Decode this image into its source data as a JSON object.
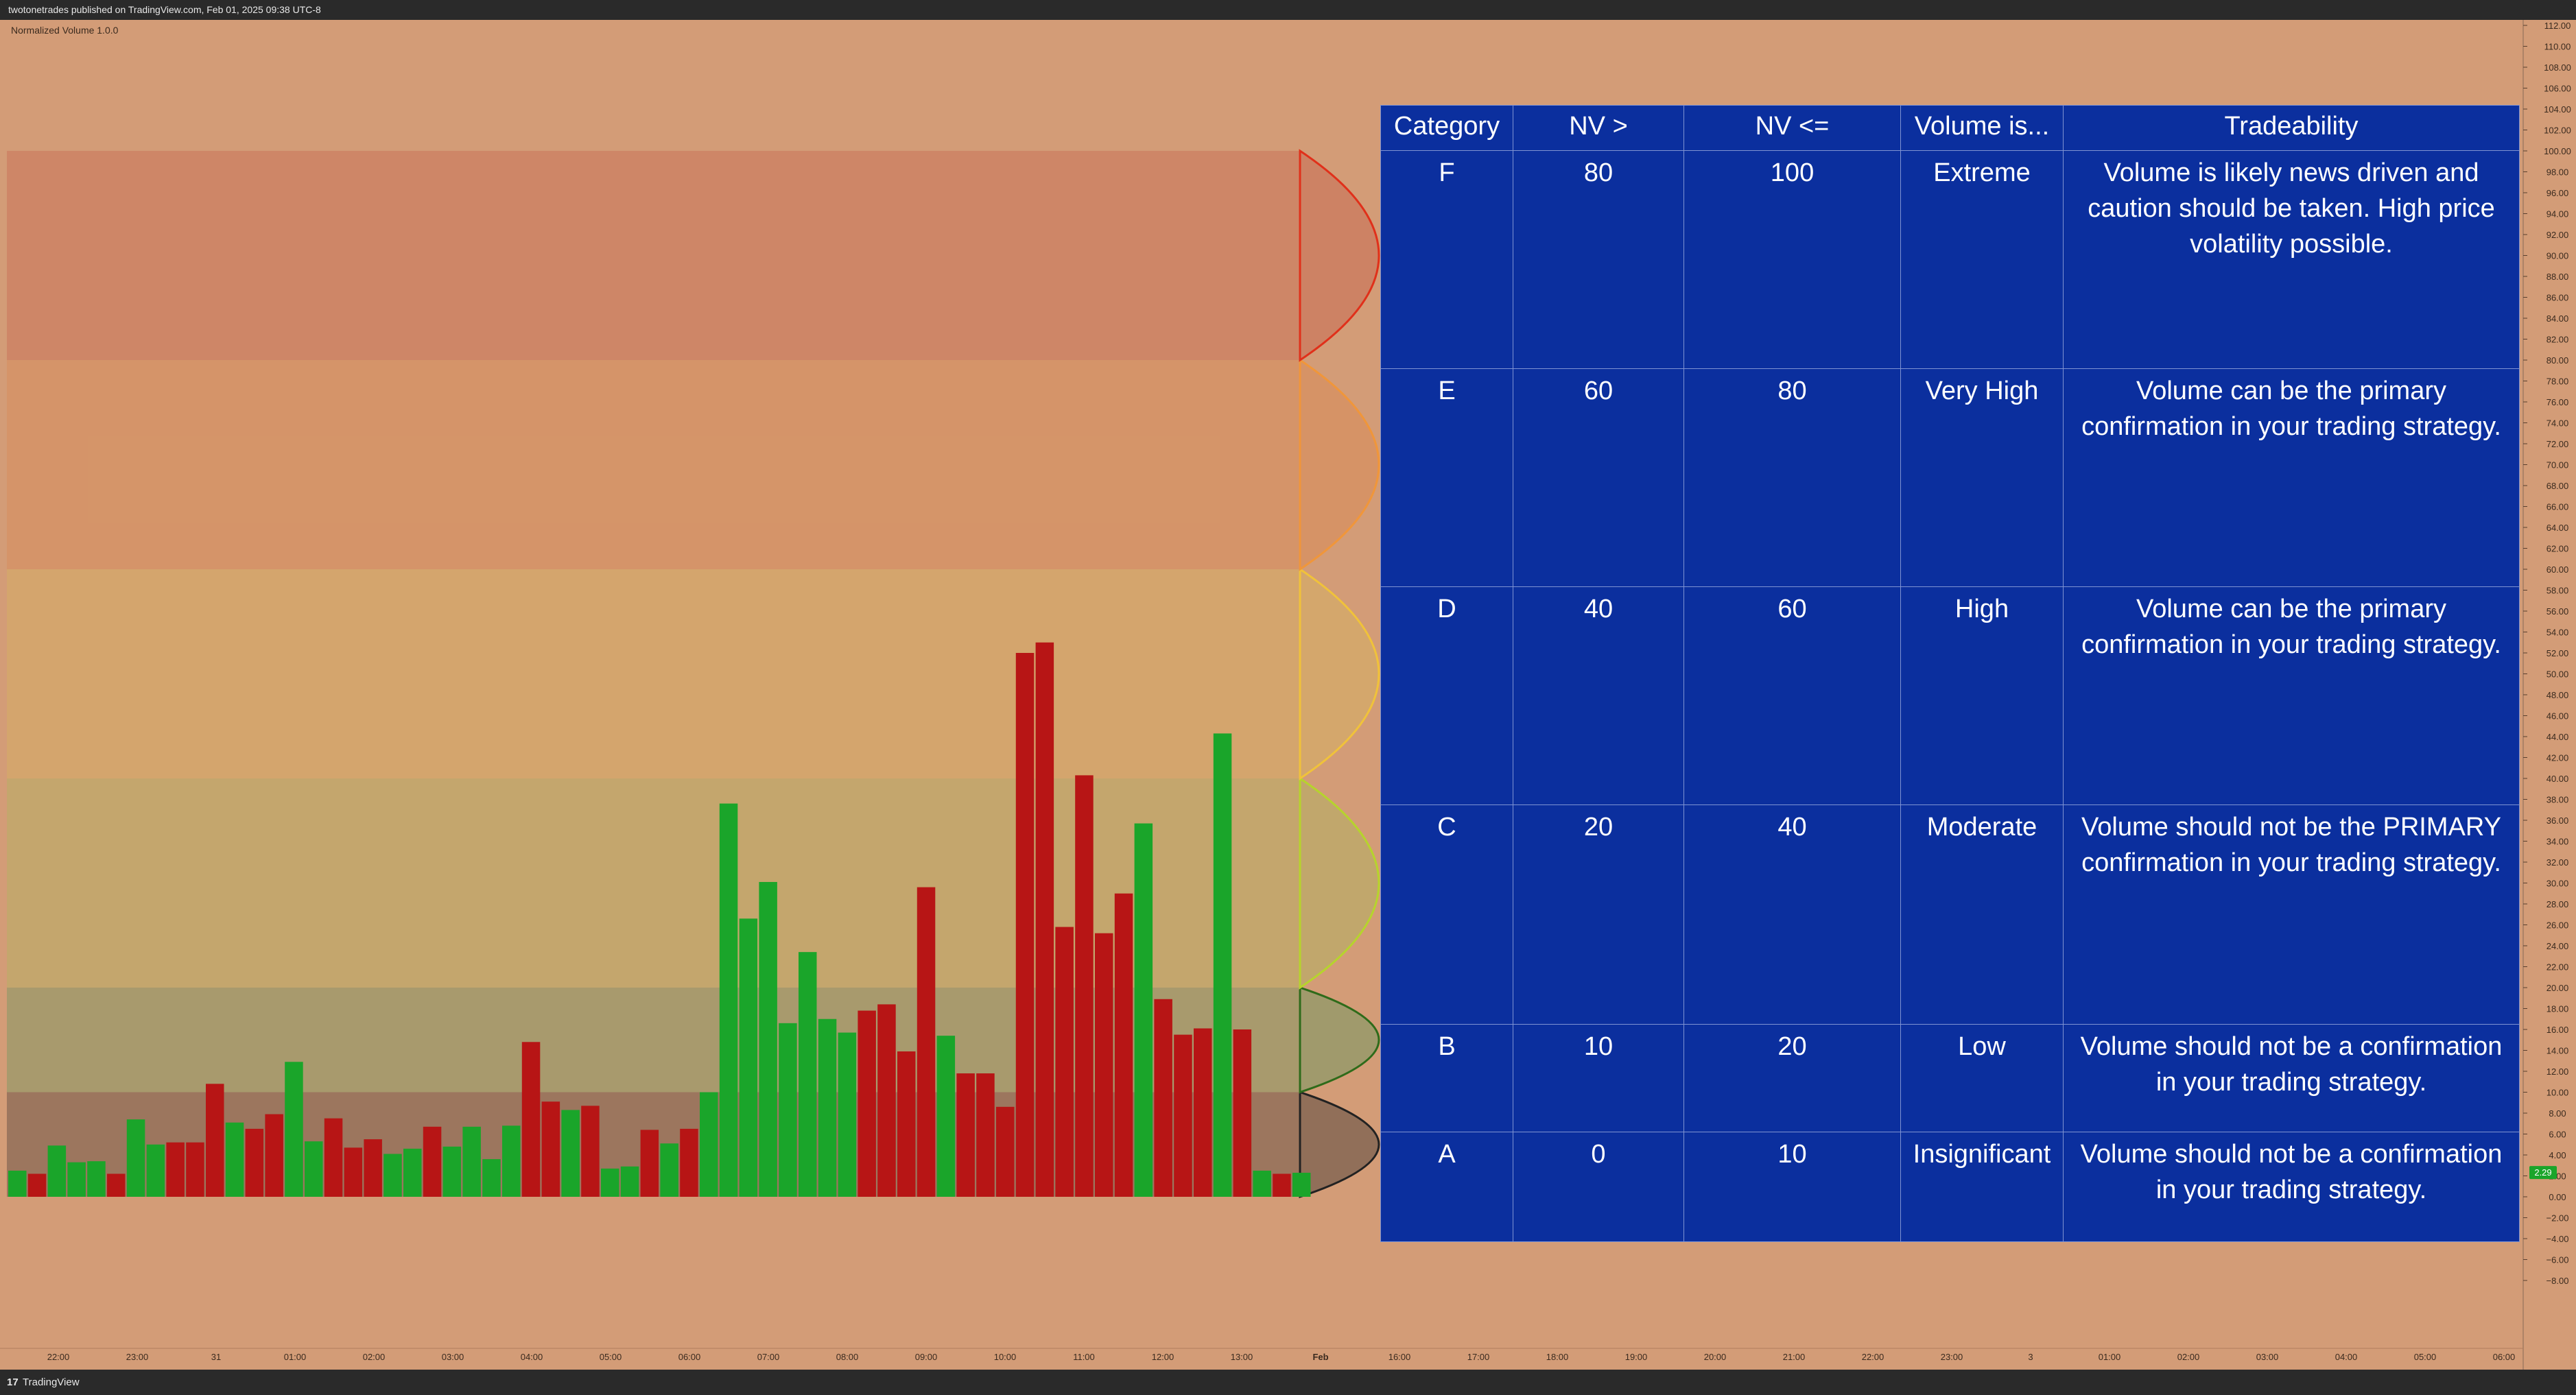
{
  "header": {
    "publish_info": "twotonetrades published on TradingView.com, Feb 01, 2025 09:38 UTC-8"
  },
  "footer": {
    "brand": "TradingView"
  },
  "colors": {
    "background": "#d39c77",
    "bull": "#1aa52a",
    "bear": "#b71515",
    "table_bg": "#0b2f9e",
    "table_border": "#7f93d2",
    "last_value_badge": "#1aa52a"
  },
  "chart_data": {
    "type": "bar",
    "title": "",
    "indicator_name": "Normalized Volume 1.0.0",
    "ylim": [
      -9,
      113
    ],
    "y_ticks": [
      "112.00",
      "110.00",
      "108.00",
      "106.00",
      "104.00",
      "102.00",
      "100.00",
      "98.00",
      "96.00",
      "94.00",
      "92.00",
      "90.00",
      "88.00",
      "86.00",
      "84.00",
      "82.00",
      "80.00",
      "78.00",
      "76.00",
      "74.00",
      "72.00",
      "70.00",
      "68.00",
      "66.00",
      "64.00",
      "62.00",
      "60.00",
      "58.00",
      "56.00",
      "54.00",
      "52.00",
      "50.00",
      "48.00",
      "46.00",
      "44.00",
      "42.00",
      "40.00",
      "38.00",
      "36.00",
      "34.00",
      "32.00",
      "30.00",
      "28.00",
      "26.00",
      "24.00",
      "22.00",
      "20.00",
      "18.00",
      "16.00",
      "14.00",
      "12.00",
      "10.00",
      "8.00",
      "6.00",
      "4.00",
      "2.00",
      "0.00",
      "−2.00",
      "−4.00",
      "−6.00",
      "−8.00"
    ],
    "x_ticks": [
      "22:00",
      "23:00",
      "31",
      "01:00",
      "02:00",
      "03:00",
      "04:00",
      "05:00",
      "06:00",
      "07:00",
      "08:00",
      "09:00",
      "10:00",
      "11:00",
      "12:00",
      "13:00",
      "Feb",
      "16:00",
      "17:00",
      "18:00",
      "19:00",
      "20:00",
      "21:00",
      "22:00",
      "23:00",
      "3",
      "01:00",
      "02:00",
      "03:00",
      "04:00",
      "05:00",
      "06:00"
    ],
    "bold_x_ticks": [
      "Feb"
    ],
    "last_value_label": "2.29",
    "last_value": 2.29,
    "zones": [
      {
        "label": "A",
        "low": 0,
        "high": 10,
        "color": "#8a6a55",
        "edge": "#222222"
      },
      {
        "label": "B",
        "low": 10,
        "high": 20,
        "color": "#9a9a6a",
        "edge": "#2e6b1a"
      },
      {
        "label": "C",
        "low": 20,
        "high": 40,
        "color": "#bfa96a",
        "edge": "#b6d42c"
      },
      {
        "label": "D",
        "low": 40,
        "high": 60,
        "color": "#d4a86a",
        "edge": "#f0c23a"
      },
      {
        "label": "E",
        "low": 60,
        "high": 80,
        "color": "#d69264",
        "edge": "#f0963a"
      },
      {
        "label": "F",
        "low": 80,
        "high": 100,
        "color": "#cc7f62",
        "edge": "#e0301a"
      }
    ],
    "bars": [
      {
        "v": 2.5,
        "dir": "up"
      },
      {
        "v": 2.2,
        "dir": "down"
      },
      {
        "v": 4.9,
        "dir": "up"
      },
      {
        "v": 3.3,
        "dir": "up"
      },
      {
        "v": 3.4,
        "dir": "up"
      },
      {
        "v": 2.2,
        "dir": "down"
      },
      {
        "v": 7.4,
        "dir": "up"
      },
      {
        "v": 5.0,
        "dir": "up"
      },
      {
        "v": 5.2,
        "dir": "down"
      },
      {
        "v": 5.2,
        "dir": "down"
      },
      {
        "v": 10.8,
        "dir": "down"
      },
      {
        "v": 7.1,
        "dir": "up"
      },
      {
        "v": 6.5,
        "dir": "down"
      },
      {
        "v": 7.9,
        "dir": "down"
      },
      {
        "v": 12.9,
        "dir": "up"
      },
      {
        "v": 5.3,
        "dir": "up"
      },
      {
        "v": 7.5,
        "dir": "down"
      },
      {
        "v": 4.7,
        "dir": "down"
      },
      {
        "v": 5.5,
        "dir": "down"
      },
      {
        "v": 4.1,
        "dir": "up"
      },
      {
        "v": 4.6,
        "dir": "up"
      },
      {
        "v": 6.7,
        "dir": "down"
      },
      {
        "v": 4.8,
        "dir": "up"
      },
      {
        "v": 6.7,
        "dir": "up"
      },
      {
        "v": 3.6,
        "dir": "up"
      },
      {
        "v": 6.8,
        "dir": "up"
      },
      {
        "v": 14.8,
        "dir": "down"
      },
      {
        "v": 9.1,
        "dir": "down"
      },
      {
        "v": 8.3,
        "dir": "up"
      },
      {
        "v": 8.7,
        "dir": "down"
      },
      {
        "v": 2.7,
        "dir": "up"
      },
      {
        "v": 2.9,
        "dir": "up"
      },
      {
        "v": 6.4,
        "dir": "down"
      },
      {
        "v": 5.1,
        "dir": "up"
      },
      {
        "v": 6.5,
        "dir": "down"
      },
      {
        "v": 10.0,
        "dir": "up"
      },
      {
        "v": 37.6,
        "dir": "up"
      },
      {
        "v": 26.6,
        "dir": "up"
      },
      {
        "v": 30.1,
        "dir": "up"
      },
      {
        "v": 16.6,
        "dir": "up"
      },
      {
        "v": 23.4,
        "dir": "up"
      },
      {
        "v": 17.0,
        "dir": "up"
      },
      {
        "v": 15.7,
        "dir": "up"
      },
      {
        "v": 17.8,
        "dir": "down"
      },
      {
        "v": 18.4,
        "dir": "down"
      },
      {
        "v": 13.9,
        "dir": "down"
      },
      {
        "v": 29.6,
        "dir": "down"
      },
      {
        "v": 15.4,
        "dir": "up"
      },
      {
        "v": 11.8,
        "dir": "down"
      },
      {
        "v": 11.8,
        "dir": "down"
      },
      {
        "v": 8.6,
        "dir": "down"
      },
      {
        "v": 52.0,
        "dir": "down"
      },
      {
        "v": 53.0,
        "dir": "down"
      },
      {
        "v": 25.8,
        "dir": "down"
      },
      {
        "v": 40.3,
        "dir": "down"
      },
      {
        "v": 25.2,
        "dir": "down"
      },
      {
        "v": 29.0,
        "dir": "down"
      },
      {
        "v": 35.7,
        "dir": "up"
      },
      {
        "v": 18.9,
        "dir": "down"
      },
      {
        "v": 15.5,
        "dir": "down"
      },
      {
        "v": 16.1,
        "dir": "down"
      },
      {
        "v": 44.3,
        "dir": "up"
      },
      {
        "v": 16.0,
        "dir": "down"
      },
      {
        "v": 2.5,
        "dir": "up"
      },
      {
        "v": 2.2,
        "dir": "down"
      },
      {
        "v": 2.3,
        "dir": "up"
      }
    ]
  },
  "table": {
    "headers": [
      "Category",
      "NV >",
      "NV <=",
      "Volume is...",
      "Tradeability"
    ],
    "rows": [
      {
        "category": "F",
        "nv_gt": "80",
        "nv_lte": "100",
        "volume_is": "Extreme",
        "tradeability": "Volume is likely news driven and caution should be taken. High price volatility possible."
      },
      {
        "category": "E",
        "nv_gt": "60",
        "nv_lte": "80",
        "volume_is": "Very High",
        "tradeability": "Volume can be the primary confirmation in your trading strategy."
      },
      {
        "category": "D",
        "nv_gt": "40",
        "nv_lte": "60",
        "volume_is": "High",
        "tradeability": "Volume can be the primary confirmation in your trading strategy."
      },
      {
        "category": "C",
        "nv_gt": "20",
        "nv_lte": "40",
        "volume_is": "Moderate",
        "tradeability": "Volume should not be the PRIMARY confirmation in your trading strategy."
      },
      {
        "category": "B",
        "nv_gt": "10",
        "nv_lte": "20",
        "volume_is": "Low",
        "tradeability": "Volume should not be a confirmation in your trading strategy."
      },
      {
        "category": "A",
        "nv_gt": "0",
        "nv_lte": "10",
        "volume_is": "Insignificant",
        "tradeability": "Volume should not be a confirmation in your trading strategy."
      }
    ]
  }
}
